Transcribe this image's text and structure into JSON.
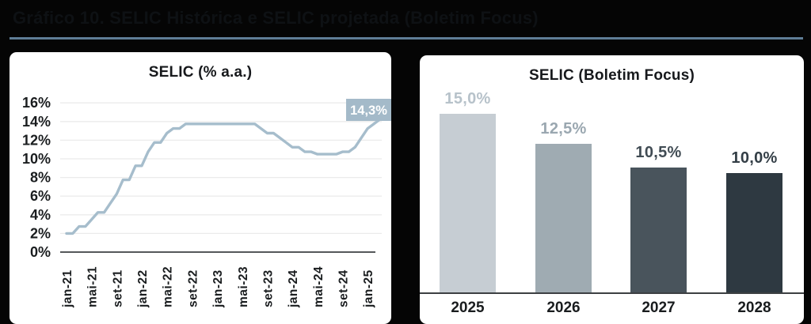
{
  "page": {
    "title": "Gráfico 10. SELIC Histórica e SELIC projetada (Boletim Focus)",
    "title_color": "#0e1114",
    "background": "#050505",
    "divider_color": "#5f7d96"
  },
  "chart_data": [
    {
      "type": "line",
      "title": "SELIC (% a.a.)",
      "xlabel": "",
      "ylabel": "",
      "ylim": [
        0,
        16
      ],
      "ytick_step": 2,
      "ytick_suffix": "%",
      "grid": true,
      "x_frequency": "monthly",
      "x_start": "jan-21",
      "x_end": "mar-25",
      "x_tick_labels": [
        "jan-21",
        "mai-21",
        "set-21",
        "jan-22",
        "mai-22",
        "set-22",
        "jan-23",
        "mai-23",
        "set-23",
        "jan-24",
        "mai-24",
        "set-24",
        "jan-25"
      ],
      "series": [
        {
          "name": "SELIC histórica",
          "values": [
            2.0,
            2.0,
            2.75,
            2.75,
            3.5,
            4.25,
            4.25,
            5.25,
            6.25,
            7.75,
            7.75,
            9.25,
            9.25,
            10.75,
            11.75,
            11.75,
            12.75,
            13.25,
            13.25,
            13.75,
            13.75,
            13.75,
            13.75,
            13.75,
            13.75,
            13.75,
            13.75,
            13.75,
            13.75,
            13.75,
            13.75,
            13.25,
            12.75,
            12.75,
            12.25,
            11.75,
            11.25,
            11.25,
            10.75,
            10.75,
            10.5,
            10.5,
            10.5,
            10.5,
            10.75,
            10.75,
            11.25,
            12.25,
            13.25,
            13.75,
            14.25
          ]
        }
      ],
      "end_label": "14,3%",
      "end_label_bg": "#a4bac9",
      "end_label_text_color": "#ffffff",
      "line_color": "#a6bdcc",
      "grid_color": "#ebebeb",
      "axis_color": "#3d4043",
      "text_color": "#1a1d1f"
    },
    {
      "type": "bar",
      "title": "SELIC (Boletim Focus)",
      "xlabel": "",
      "ylabel": "",
      "ylim": [
        0,
        16
      ],
      "grid": false,
      "categories": [
        "2025",
        "2026",
        "2027",
        "2028"
      ],
      "values": [
        15.0,
        12.5,
        10.5,
        10.0
      ],
      "value_labels": [
        "15,0%",
        "12,5%",
        "10,5%",
        "10,0%"
      ],
      "bar_colors": [
        "#c6cdd3",
        "#9fabb2",
        "#49545c",
        "#2e3941"
      ],
      "label_colors": [
        "#b7c2ca",
        "#9aa7b0",
        "#414c54",
        "#333e46"
      ],
      "axis_color": "#3c3f42",
      "text_color": "#191c1e"
    }
  ]
}
